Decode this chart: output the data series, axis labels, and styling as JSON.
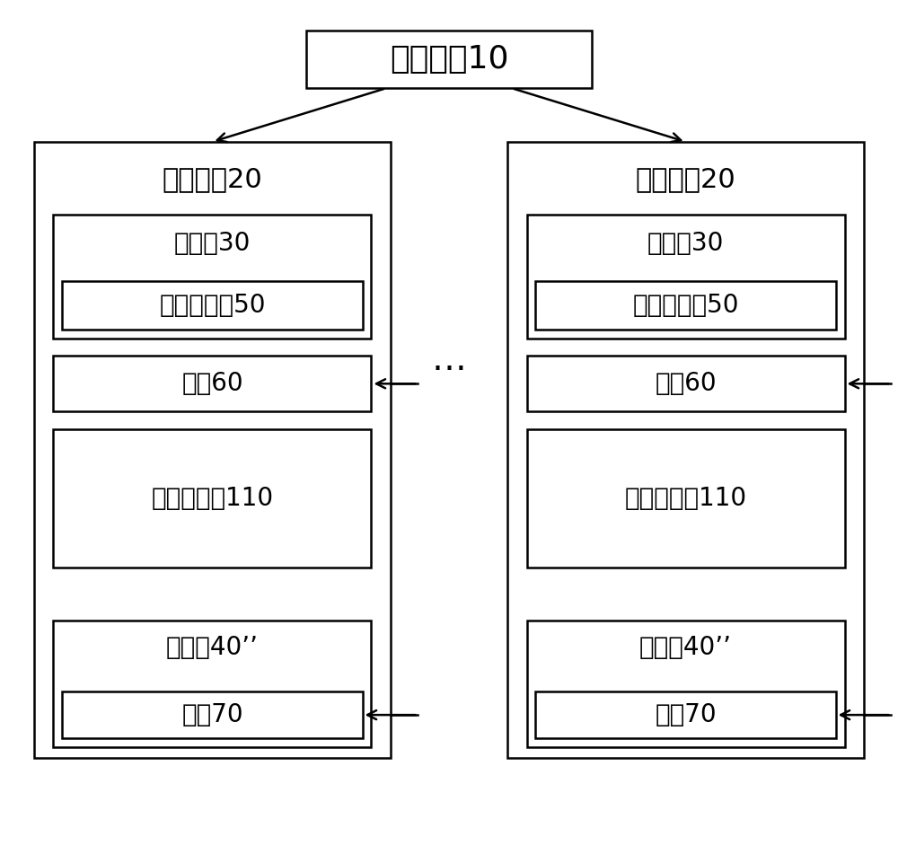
{
  "title": "控制终端10",
  "box1_label": "智能花符20",
  "box2_label": "智能花符20",
  "dots": "…",
  "label_planting": "种植区30",
  "label_sensor": "土壤传感唀50",
  "label_guide": "导的60",
  "label_sewage": "污水处理器110",
  "label_storage": "储水区40’’",
  "label_pump": "水憈70",
  "bg_color": "#ffffff",
  "box_edge_color": "#000000",
  "text_color": "#000000",
  "font_size_title": 26,
  "font_size_label": 22,
  "font_size_inner": 20,
  "font_size_dots": 28
}
